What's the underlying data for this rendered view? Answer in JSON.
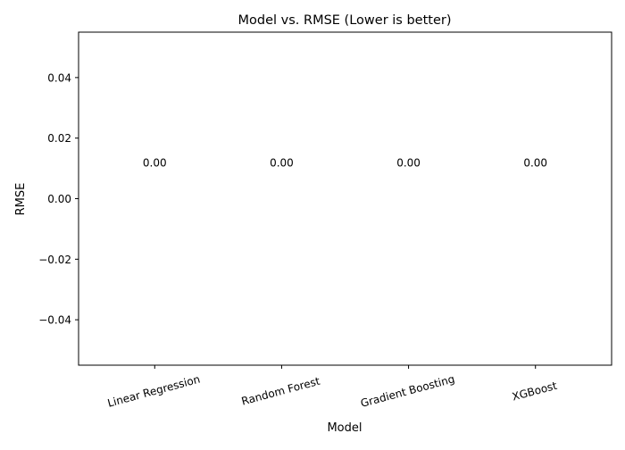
{
  "chart_data": {
    "type": "bar",
    "title": "Model vs. RMSE (Lower is better)",
    "xlabel": "Model",
    "ylabel": "RMSE",
    "categories": [
      "Linear Regression",
      "Random Forest",
      "Gradient Boosting",
      "XGBoost"
    ],
    "values": [
      0.0,
      0.0,
      0.0,
      0.0
    ],
    "data_labels": [
      "0.00",
      "0.00",
      "0.00",
      "0.00"
    ],
    "ylim": [
      -0.055,
      0.055
    ],
    "yticks": [
      -0.04,
      -0.02,
      0.0,
      0.02,
      0.04
    ],
    "ytick_labels": [
      "−0.04",
      "−0.02",
      "0.00",
      "0.02",
      "0.04"
    ],
    "grid": false,
    "legend": "none",
    "bar_color": "#1f77b4"
  }
}
